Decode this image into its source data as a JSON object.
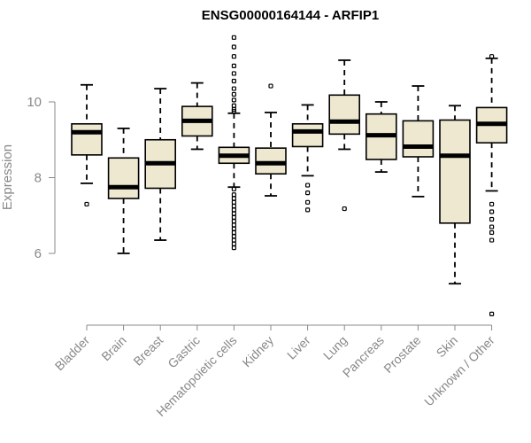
{
  "chart_data": {
    "type": "boxplot",
    "title": "ENSG00000164144 - ARFIP1",
    "ylabel": "Expression",
    "xlabel": "",
    "ylim": [
      4.1,
      11.8
    ],
    "yticks": [
      6,
      8,
      10
    ],
    "categories": [
      "Bladder",
      "Brain",
      "Breast",
      "Gastric",
      "Hematopoietic cells",
      "Kidney",
      "Liver",
      "Lung",
      "Pancreas",
      "Prostate",
      "Skin",
      "Unknown / Other"
    ],
    "box_fill": "#EEE8D0",
    "axis_color": "#888888",
    "boxes": [
      {
        "q1": 8.6,
        "median": 9.2,
        "q3": 9.42,
        "lower": 7.85,
        "upper": 10.45,
        "outliers": [
          7.3
        ]
      },
      {
        "q1": 7.45,
        "median": 7.75,
        "q3": 8.52,
        "lower": 6.0,
        "upper": 9.3,
        "outliers": []
      },
      {
        "q1": 7.72,
        "median": 8.38,
        "q3": 9.0,
        "lower": 6.35,
        "upper": 10.35,
        "outliers": []
      },
      {
        "q1": 9.1,
        "median": 9.5,
        "q3": 9.88,
        "lower": 8.75,
        "upper": 10.5,
        "outliers": []
      },
      {
        "q1": 8.38,
        "median": 8.58,
        "q3": 8.8,
        "lower": 7.75,
        "upper": 9.7,
        "outliers": [
          11.7,
          11.45,
          11.2,
          10.95,
          10.75,
          10.55,
          10.35,
          10.2,
          10.05,
          9.9,
          9.8,
          9.75,
          7.7,
          7.55,
          7.45,
          7.35,
          7.25,
          7.15,
          7.05,
          6.95,
          6.85,
          6.75,
          6.65,
          6.55,
          6.45,
          6.35,
          6.25,
          6.15
        ]
      },
      {
        "q1": 8.1,
        "median": 8.38,
        "q3": 8.78,
        "lower": 7.52,
        "upper": 9.72,
        "outliers": [
          10.42
        ]
      },
      {
        "q1": 8.82,
        "median": 9.22,
        "q3": 9.42,
        "lower": 8.05,
        "upper": 9.92,
        "outliers": [
          7.8,
          7.6,
          7.35,
          7.15
        ]
      },
      {
        "q1": 9.15,
        "median": 9.48,
        "q3": 10.18,
        "lower": 8.75,
        "upper": 11.1,
        "outliers": [
          7.18
        ]
      },
      {
        "q1": 8.48,
        "median": 9.12,
        "q3": 9.68,
        "lower": 8.15,
        "upper": 10.0,
        "outliers": []
      },
      {
        "q1": 8.55,
        "median": 8.82,
        "q3": 9.5,
        "lower": 7.5,
        "upper": 10.42,
        "outliers": []
      },
      {
        "q1": 6.8,
        "median": 8.58,
        "q3": 9.52,
        "lower": 5.2,
        "upper": 9.9,
        "outliers": []
      },
      {
        "q1": 8.92,
        "median": 9.42,
        "q3": 9.85,
        "lower": 7.65,
        "upper": 11.15,
        "outliers": [
          11.2,
          7.3,
          7.1,
          6.9,
          6.7,
          6.55,
          6.35,
          4.4
        ]
      }
    ]
  }
}
